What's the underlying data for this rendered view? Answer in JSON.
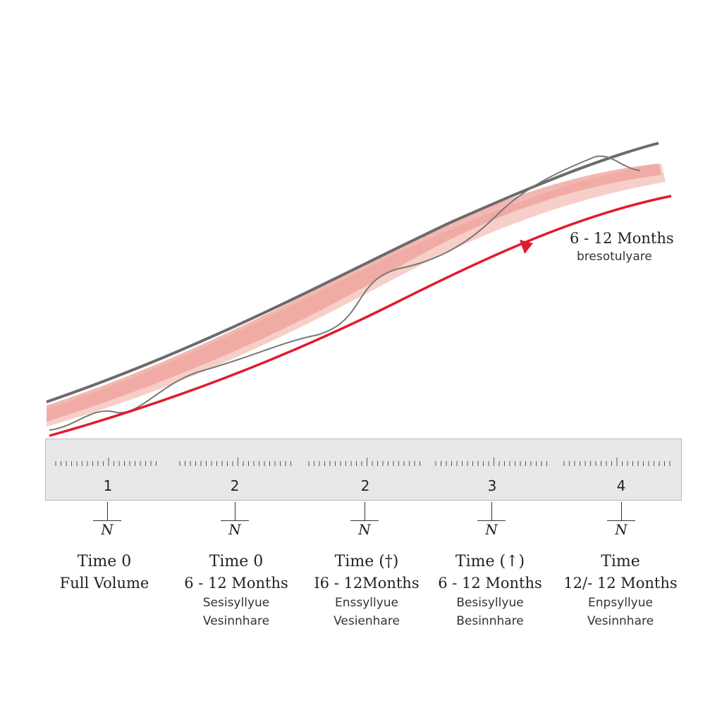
{
  "callout": {
    "title": "6 - 12 Months",
    "subtitle": "bresotulyare"
  },
  "ruler": {
    "numbers": [
      "1",
      "2",
      "2",
      "3",
      "4"
    ]
  },
  "markers": {
    "glyph": "N"
  },
  "columns": [
    {
      "time": "Time  0",
      "period": "Full Volume",
      "line1": "",
      "line2": ""
    },
    {
      "time": "Time  0",
      "period": "6 - 12 Months",
      "line1": "Sesisyllyue",
      "line2": "Vesinnhare"
    },
    {
      "time": "Time  (†)",
      "period": "I6 - 12Months",
      "line1": "Enssyllyue",
      "line2": "Vesienhare"
    },
    {
      "time": "Time  (↑)",
      "period": "6 - 12 Months",
      "line1": "Besisyllyue",
      "line2": "Besinnhare"
    },
    {
      "time": "Time",
      "period": "12/- 12 Months",
      "line1": "Enpsyllyue",
      "line2": "Vesinnhare"
    }
  ],
  "colors": {
    "gray_line": "#6b6b6b",
    "red_line": "#e11b2f",
    "band_dark": "#ef9f98",
    "band_light": "#f7cfc9",
    "ruler_bg": "#e8e8e8"
  }
}
